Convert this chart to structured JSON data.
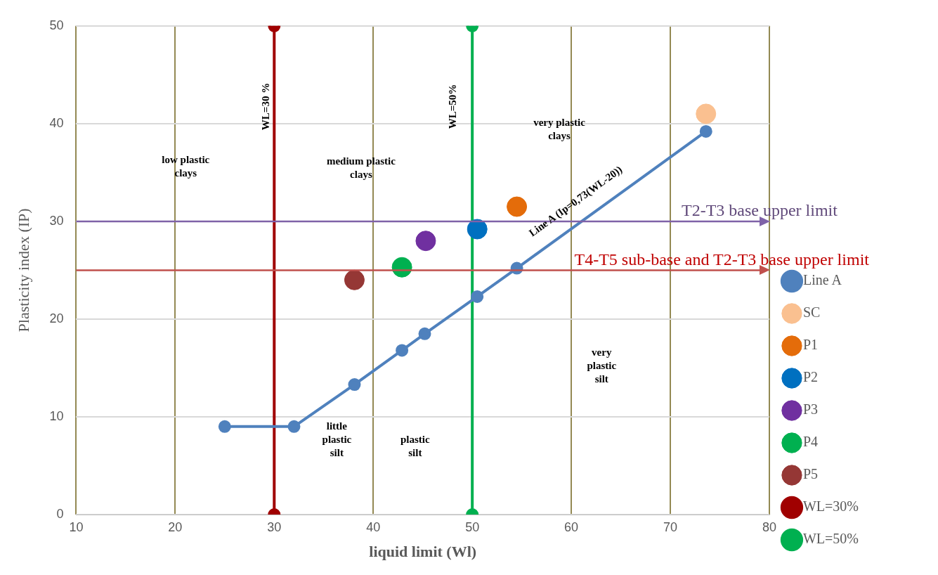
{
  "chart_data": {
    "type": "scatter",
    "xlabel": "liquid limit (Wl)",
    "ylabel": "Plasticity index (IP)",
    "xlim": [
      10,
      80
    ],
    "xticks": [
      10,
      20,
      30,
      40,
      50,
      60,
      70,
      80
    ],
    "ylim": [
      0,
      50
    ],
    "yticks": [
      0,
      10,
      20,
      30,
      40,
      50
    ],
    "grid": true,
    "legend": "right",
    "marker": "circle",
    "series": [
      {
        "name": "Line A",
        "type": "line",
        "color": "#4f81bd",
        "x": [
          25,
          32,
          38.1,
          42.9,
          45.2,
          50.5,
          54.5,
          73.6
        ],
        "values": [
          9,
          9,
          13.3,
          16.8,
          18.5,
          22.3,
          25.2,
          39.2
        ]
      },
      {
        "name": "SC",
        "type": "scatter",
        "color": "#fac090",
        "x": [
          73.6
        ],
        "values": [
          41
        ]
      },
      {
        "name": "P1",
        "type": "scatter",
        "color": "#e46c0a",
        "x": [
          54.5
        ],
        "values": [
          31.5
        ]
      },
      {
        "name": "P2",
        "type": "scatter",
        "color": "#0070c0",
        "x": [
          50.5
        ],
        "values": [
          29.2
        ]
      },
      {
        "name": "P3",
        "type": "scatter",
        "color": "#7030a0",
        "x": [
          45.3
        ],
        "values": [
          28
        ]
      },
      {
        "name": "P4",
        "type": "scatter",
        "color": "#00b050",
        "x": [
          42.9
        ],
        "values": [
          25.3
        ]
      },
      {
        "name": "P5",
        "type": "scatter",
        "color": "#953735",
        "x": [
          38.1
        ],
        "values": [
          24
        ]
      },
      {
        "name": "WL=30%",
        "type": "line",
        "color": "#a00000",
        "x": [
          30,
          30
        ],
        "values": [
          0,
          50
        ]
      },
      {
        "name": "WL=50%",
        "type": "line",
        "color": "#00b050",
        "x": [
          50,
          50
        ],
        "values": [
          0,
          50
        ]
      }
    ],
    "ref_lines": [
      {
        "axis": "y",
        "value": 30,
        "label": "T2-T3 base upper limit",
        "color": "#7f62a8"
      },
      {
        "axis": "y",
        "value": 25,
        "label": "T4-T5 sub-base and T2-T3 base upper limit",
        "color": "#c0504d"
      }
    ],
    "annotations": [
      "low plastic\nclays",
      "medium plastic\nclays",
      "very plastic\nclays",
      "very\nplastic\nsilt",
      "little\nplastic\nsilt",
      "plastic\nsilt",
      "WL=30 %",
      "WL=50%",
      "Line A (Ip=0,73(WL-20))"
    ]
  }
}
